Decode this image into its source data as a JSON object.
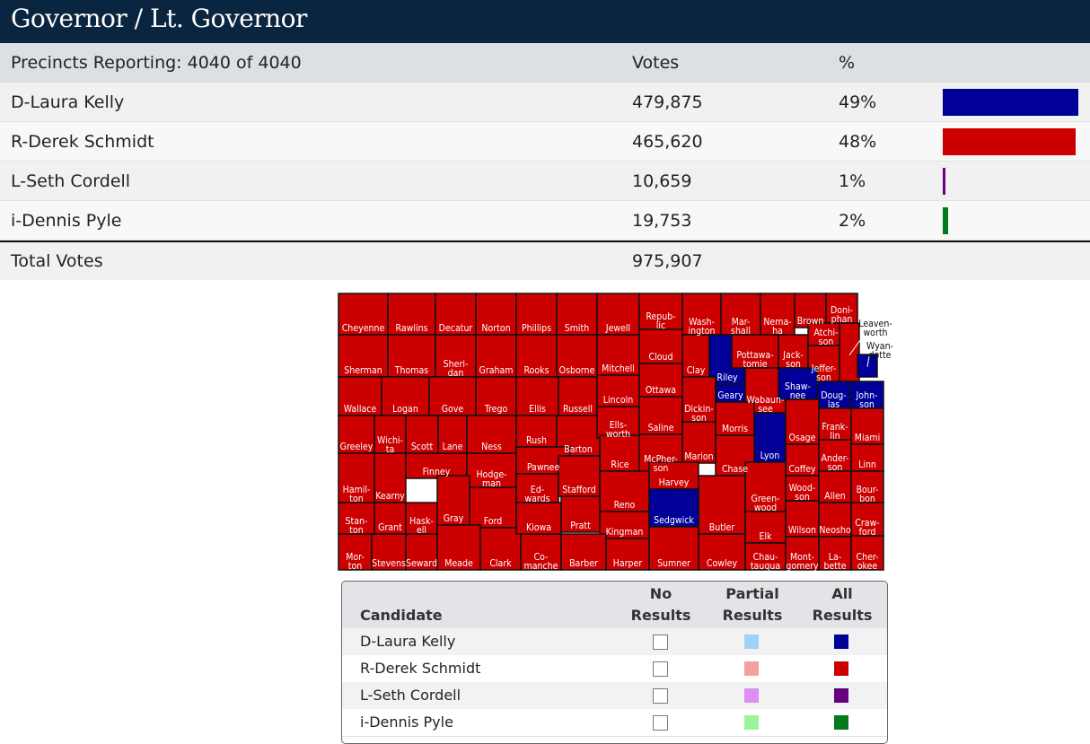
{
  "header": {
    "title": "Governor / Lt. Governor"
  },
  "results": {
    "columns": [
      "Precincts Reporting: 4040 of 4040",
      "Votes",
      "%"
    ],
    "rows": [
      {
        "candidate": "D-Laura Kelly",
        "votes": "479,875",
        "pct": 49,
        "pct_label": "49%",
        "color": "#000099"
      },
      {
        "candidate": "R-Derek Schmidt",
        "votes": "465,620",
        "pct": 48,
        "pct_label": "48%",
        "color": "#cc0000"
      },
      {
        "candidate": "L-Seth Cordell",
        "votes": "10,659",
        "pct": 1,
        "pct_label": "1%",
        "color": "#660080"
      },
      {
        "candidate": "i-Dennis Pyle",
        "votes": "19,753",
        "pct": 2,
        "pct_label": "2%",
        "color": "#007a1a"
      }
    ],
    "total": {
      "label": "Total Votes",
      "votes": "975,907"
    }
  },
  "map": {
    "colors": {
      "R": "#cc0000",
      "D": "#000099"
    },
    "counties": [
      {
        "lines": [
          "Cheyenne"
        ],
        "winner": "R"
      },
      {
        "lines": [
          "Rawlins"
        ],
        "winner": "R"
      },
      {
        "lines": [
          "Decatur"
        ],
        "winner": "R"
      },
      {
        "lines": [
          "Norton"
        ],
        "winner": "R"
      },
      {
        "lines": [
          "Phillips"
        ],
        "winner": "R"
      },
      {
        "lines": [
          "Smith"
        ],
        "winner": "R"
      },
      {
        "lines": [
          "Jewell"
        ],
        "winner": "R"
      },
      {
        "lines": [
          "Repub-",
          "lic"
        ],
        "winner": "R"
      },
      {
        "lines": [
          "Wash-",
          "ington"
        ],
        "winner": "R"
      },
      {
        "lines": [
          "Mar-",
          "shall"
        ],
        "winner": "R"
      },
      {
        "lines": [
          "Nema-",
          "ha"
        ],
        "winner": "R"
      },
      {
        "lines": [
          "Brown"
        ],
        "winner": "R"
      },
      {
        "lines": [
          "Doni-",
          "phan"
        ],
        "winner": "R"
      },
      {
        "lines": [
          "Sherman"
        ],
        "winner": "R"
      },
      {
        "lines": [
          "Thomas"
        ],
        "winner": "R"
      },
      {
        "lines": [
          "Sheri-",
          "dan"
        ],
        "winner": "R"
      },
      {
        "lines": [
          "Graham"
        ],
        "winner": "R"
      },
      {
        "lines": [
          "Rooks"
        ],
        "winner": "R"
      },
      {
        "lines": [
          "Osborne"
        ],
        "winner": "R"
      },
      {
        "lines": [
          "Mitchell"
        ],
        "winner": "R"
      },
      {
        "lines": [
          "Cloud"
        ],
        "winner": "R"
      },
      {
        "lines": [
          "Clay"
        ],
        "winner": "R"
      },
      {
        "lines": [
          "Riley"
        ],
        "winner": "D"
      },
      {
        "lines": [
          "Pottawa-",
          "tomie"
        ],
        "winner": "R"
      },
      {
        "lines": [
          "Jack-",
          "son"
        ],
        "winner": "R"
      },
      {
        "lines": [
          "Atchi-",
          "son"
        ],
        "winner": "R"
      },
      {
        "lines": [
          "Jeffer-",
          "son"
        ],
        "winner": "R"
      },
      {
        "lines": [
          "Leaven-",
          "worth"
        ],
        "winner": "R"
      },
      {
        "lines": [
          "Wyan-",
          "dotte"
        ],
        "winner": "D"
      },
      {
        "lines": [
          "Wallace"
        ],
        "winner": "R"
      },
      {
        "lines": [
          "Logan"
        ],
        "winner": "R"
      },
      {
        "lines": [
          "Gove"
        ],
        "winner": "R"
      },
      {
        "lines": [
          "Trego"
        ],
        "winner": "R"
      },
      {
        "lines": [
          "Ellis"
        ],
        "winner": "R"
      },
      {
        "lines": [
          "Russell"
        ],
        "winner": "R"
      },
      {
        "lines": [
          "Lincoln"
        ],
        "winner": "R"
      },
      {
        "lines": [
          "Ottawa"
        ],
        "winner": "R"
      },
      {
        "lines": [
          "Dickin-",
          "son"
        ],
        "winner": "R"
      },
      {
        "lines": [
          "Geary"
        ],
        "winner": "D"
      },
      {
        "lines": [
          "Wabaun-",
          "see"
        ],
        "winner": "R"
      },
      {
        "lines": [
          "Shaw-",
          "nee"
        ],
        "winner": "D"
      },
      {
        "lines": [
          "Doug-",
          "las"
        ],
        "winner": "D"
      },
      {
        "lines": [
          "John-",
          "son"
        ],
        "winner": "D"
      },
      {
        "lines": [
          "Greeley"
        ],
        "winner": "R"
      },
      {
        "lines": [
          "Wichi-",
          "ta"
        ],
        "winner": "R"
      },
      {
        "lines": [
          "Scott"
        ],
        "winner": "R"
      },
      {
        "lines": [
          "Lane"
        ],
        "winner": "R"
      },
      {
        "lines": [
          "Ness"
        ],
        "winner": "R"
      },
      {
        "lines": [
          "Rush"
        ],
        "winner": "R"
      },
      {
        "lines": [
          "Barton"
        ],
        "winner": "R"
      },
      {
        "lines": [
          "Ells-",
          "worth"
        ],
        "winner": "R"
      },
      {
        "lines": [
          "Saline"
        ],
        "winner": "R"
      },
      {
        "lines": [
          "Morris"
        ],
        "winner": "R"
      },
      {
        "lines": [
          "Lyon"
        ],
        "winner": "D"
      },
      {
        "lines": [
          "Osage"
        ],
        "winner": "R"
      },
      {
        "lines": [
          "Frank-",
          "lin"
        ],
        "winner": "R"
      },
      {
        "lines": [
          "Miami"
        ],
        "winner": "R"
      },
      {
        "lines": [
          "Hamil-",
          "ton"
        ],
        "winner": "R"
      },
      {
        "lines": [
          "Kearny"
        ],
        "winner": "R"
      },
      {
        "lines": [
          "Finney"
        ],
        "winner": "R"
      },
      {
        "lines": [
          "Hodge-",
          "man"
        ],
        "winner": "R"
      },
      {
        "lines": [
          "Pawnee"
        ],
        "winner": "R"
      },
      {
        "lines": [
          "Rice"
        ],
        "winner": "R"
      },
      {
        "lines": [
          "McPher-",
          "son"
        ],
        "winner": "R"
      },
      {
        "lines": [
          "Marion"
        ],
        "winner": "R"
      },
      {
        "lines": [
          "Chase"
        ],
        "winner": "R"
      },
      {
        "lines": [
          "Coffey"
        ],
        "winner": "R"
      },
      {
        "lines": [
          "Ander-",
          "son"
        ],
        "winner": "R"
      },
      {
        "lines": [
          "Linn"
        ],
        "winner": "R"
      },
      {
        "lines": [
          "Stan-",
          "ton"
        ],
        "winner": "R"
      },
      {
        "lines": [
          "Grant"
        ],
        "winner": "R"
      },
      {
        "lines": [
          "Hask-",
          "ell"
        ],
        "winner": "R"
      },
      {
        "lines": [
          "Gray"
        ],
        "winner": "R"
      },
      {
        "lines": [
          "Ford"
        ],
        "winner": "R"
      },
      {
        "lines": [
          "Ed-",
          "wards"
        ],
        "winner": "R"
      },
      {
        "lines": [
          "Stafford"
        ],
        "winner": "R"
      },
      {
        "lines": [
          "Reno"
        ],
        "winner": "R"
      },
      {
        "lines": [
          "Harvey"
        ],
        "winner": "R"
      },
      {
        "lines": [
          "Butler"
        ],
        "winner": "R"
      },
      {
        "lines": [
          "Green-",
          "wood"
        ],
        "winner": "R"
      },
      {
        "lines": [
          "Wood-",
          "son"
        ],
        "winner": "R"
      },
      {
        "lines": [
          "Allen"
        ],
        "winner": "R"
      },
      {
        "lines": [
          "Bour-",
          "bon"
        ],
        "winner": "R"
      },
      {
        "lines": [
          "Mor-",
          "ton"
        ],
        "winner": "R"
      },
      {
        "lines": [
          "Stevens"
        ],
        "winner": "R"
      },
      {
        "lines": [
          "Seward"
        ],
        "winner": "R"
      },
      {
        "lines": [
          "Meade"
        ],
        "winner": "R"
      },
      {
        "lines": [
          "Clark"
        ],
        "winner": "R"
      },
      {
        "lines": [
          "Co-",
          "manche"
        ],
        "winner": "R"
      },
      {
        "lines": [
          "Kiowa"
        ],
        "winner": "R"
      },
      {
        "lines": [
          "Pratt"
        ],
        "winner": "R"
      },
      {
        "lines": [
          "Kingman"
        ],
        "winner": "R"
      },
      {
        "lines": [
          "Sedgwick"
        ],
        "winner": "D"
      },
      {
        "lines": [
          "Barber"
        ],
        "winner": "R"
      },
      {
        "lines": [
          "Harper"
        ],
        "winner": "R"
      },
      {
        "lines": [
          "Sumner"
        ],
        "winner": "R"
      },
      {
        "lines": [
          "Cowley"
        ],
        "winner": "R"
      },
      {
        "lines": [
          "Elk"
        ],
        "winner": "R"
      },
      {
        "lines": [
          "Chau-",
          "tauqua"
        ],
        "winner": "R"
      },
      {
        "lines": [
          "Wilson"
        ],
        "winner": "R"
      },
      {
        "lines": [
          "Neosho"
        ],
        "winner": "R"
      },
      {
        "lines": [
          "Craw-",
          "ford"
        ],
        "winner": "R"
      },
      {
        "lines": [
          "Mont-",
          "gomery"
        ],
        "winner": "R"
      },
      {
        "lines": [
          "La-",
          "bette"
        ],
        "winner": "R"
      },
      {
        "lines": [
          "Cher-",
          "okee"
        ],
        "winner": "R"
      }
    ]
  },
  "legend": {
    "columns": [
      [
        "Candidate"
      ],
      [
        "No",
        "Results"
      ],
      [
        "Partial",
        "Results"
      ],
      [
        "All",
        "Results"
      ]
    ],
    "rows": [
      {
        "candidate": "D-Laura Kelly",
        "partial_color": "#9fd3f5",
        "all_color": "#000099"
      },
      {
        "candidate": "R-Derek Schmidt",
        "partial_color": "#f4a0a0",
        "all_color": "#cc0000"
      },
      {
        "candidate": "L-Seth Cordell",
        "partial_color": "#df8ef5",
        "all_color": "#660080"
      },
      {
        "candidate": "i-Dennis Pyle",
        "partial_color": "#9af59a",
        "all_color": "#007a1a"
      }
    ]
  }
}
